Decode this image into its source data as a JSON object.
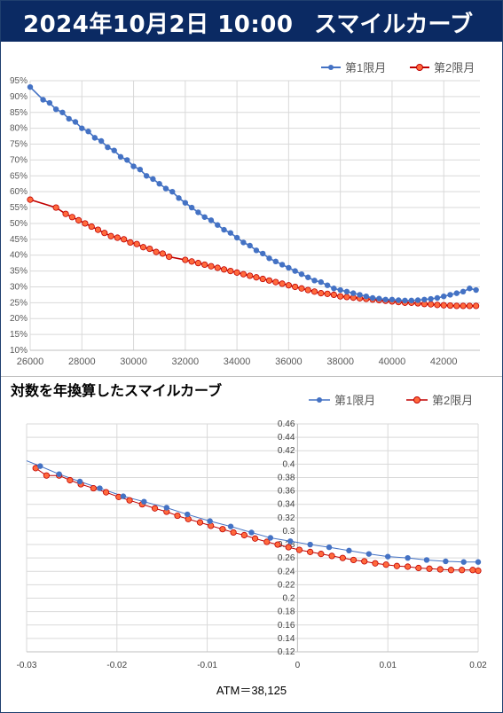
{
  "header": {
    "datetime": "2024年10月2日 10:00",
    "title": "スマイルカーブ"
  },
  "legend": {
    "series1": "第1限月",
    "series2": "第2限月"
  },
  "colors": {
    "series1": "#4472c4",
    "series2": "#ff0000",
    "series2_fill": "#ff6a3d",
    "header_bg": "#0b2a63"
  },
  "chart2_title": "対数を年換算したスマイルカーブ",
  "atm_label": "ATM＝38,125",
  "chart_data": [
    {
      "type": "line",
      "title": "",
      "xlim": [
        26000,
        43400
      ],
      "ylim": [
        10,
        95
      ],
      "x_ticks": [
        26000,
        28000,
        30000,
        32000,
        34000,
        36000,
        38000,
        40000,
        42000
      ],
      "y_ticks": [
        "10%",
        "15%",
        "20%",
        "25%",
        "30%",
        "35%",
        "40%",
        "45%",
        "50%",
        "55%",
        "60%",
        "65%",
        "70%",
        "75%",
        "80%",
        "85%",
        "90%",
        "95%"
      ],
      "grid": true,
      "legend_position": "top-right",
      "series": [
        {
          "name": "第1限月",
          "points": [
            [
              26000,
              93
            ],
            [
              26500,
              89
            ],
            [
              26750,
              88
            ],
            [
              27000,
              86
            ],
            [
              27250,
              85
            ],
            [
              27500,
              83
            ],
            [
              27750,
              82
            ],
            [
              28000,
              80
            ],
            [
              28250,
              79
            ],
            [
              28500,
              77
            ],
            [
              28750,
              76
            ],
            [
              29000,
              74
            ],
            [
              29250,
              73
            ],
            [
              29500,
              71
            ],
            [
              29750,
              70
            ],
            [
              30000,
              68
            ],
            [
              30250,
              67
            ],
            [
              30500,
              65
            ],
            [
              30750,
              64
            ],
            [
              31000,
              62.5
            ],
            [
              31250,
              61
            ],
            [
              31500,
              60
            ],
            [
              31750,
              58
            ],
            [
              32000,
              56.5
            ],
            [
              32250,
              55
            ],
            [
              32500,
              53.5
            ],
            [
              32750,
              52
            ],
            [
              33000,
              51
            ],
            [
              33250,
              49.5
            ],
            [
              33500,
              48
            ],
            [
              33750,
              47
            ],
            [
              34000,
              45.5
            ],
            [
              34250,
              44
            ],
            [
              34500,
              43
            ],
            [
              34750,
              41.5
            ],
            [
              35000,
              40.5
            ],
            [
              35250,
              39
            ],
            [
              35500,
              38
            ],
            [
              35750,
              37
            ],
            [
              36000,
              36
            ],
            [
              36250,
              35
            ],
            [
              36500,
              34
            ],
            [
              36750,
              33
            ],
            [
              37000,
              32
            ],
            [
              37250,
              31.5
            ],
            [
              37500,
              30.5
            ],
            [
              37750,
              29.5
            ],
            [
              38000,
              29
            ],
            [
              38250,
              28.5
            ],
            [
              38500,
              28
            ],
            [
              38750,
              27.5
            ],
            [
              39000,
              27
            ],
            [
              39250,
              26.5
            ],
            [
              39500,
              26.3
            ],
            [
              39750,
              26
            ],
            [
              40000,
              26
            ],
            [
              40250,
              25.8
            ],
            [
              40500,
              25.7
            ],
            [
              40750,
              25.7
            ],
            [
              41000,
              25.8
            ],
            [
              41250,
              26
            ],
            [
              41500,
              26.2
            ],
            [
              41750,
              26.5
            ],
            [
              42000,
              27
            ],
            [
              42250,
              27.5
            ],
            [
              42500,
              28
            ],
            [
              42750,
              28.5
            ],
            [
              43000,
              29.5
            ],
            [
              43250,
              29
            ]
          ]
        },
        {
          "name": "第2限月",
          "points": [
            [
              26000,
              57.5
            ],
            [
              27000,
              55
            ],
            [
              27375,
              53
            ],
            [
              27625,
              52
            ],
            [
              27875,
              51
            ],
            [
              28125,
              50
            ],
            [
              28375,
              49
            ],
            [
              28625,
              48
            ],
            [
              28875,
              47
            ],
            [
              29125,
              46
            ],
            [
              29375,
              45.5
            ],
            [
              29625,
              45
            ],
            [
              29875,
              44
            ],
            [
              30125,
              43.5
            ],
            [
              30375,
              42.5
            ],
            [
              30625,
              42
            ],
            [
              30875,
              41
            ],
            [
              31125,
              40.5
            ],
            [
              31375,
              39.5
            ],
            [
              32000,
              38.5
            ],
            [
              32250,
              38
            ],
            [
              32500,
              37.5
            ],
            [
              32750,
              37
            ],
            [
              33000,
              36.5
            ],
            [
              33250,
              36
            ],
            [
              33500,
              35.5
            ],
            [
              33750,
              35
            ],
            [
              34000,
              34.5
            ],
            [
              34250,
              34
            ],
            [
              34500,
              33.5
            ],
            [
              34750,
              33
            ],
            [
              35000,
              32.5
            ],
            [
              35250,
              32
            ],
            [
              35500,
              31.5
            ],
            [
              35750,
              31
            ],
            [
              36000,
              30.5
            ],
            [
              36250,
              30
            ],
            [
              36500,
              29.5
            ],
            [
              36750,
              29
            ],
            [
              37000,
              28.5
            ],
            [
              37250,
              28
            ],
            [
              37500,
              27.8
            ],
            [
              37750,
              27.5
            ],
            [
              38000,
              27
            ],
            [
              38250,
              26.8
            ],
            [
              38500,
              26.6
            ],
            [
              38750,
              26.4
            ],
            [
              39000,
              26.2
            ],
            [
              39250,
              26
            ],
            [
              39500,
              25.8
            ],
            [
              39750,
              25.6
            ],
            [
              40000,
              25.4
            ],
            [
              40250,
              25.2
            ],
            [
              40500,
              25
            ],
            [
              40750,
              25
            ],
            [
              41000,
              24.8
            ],
            [
              41250,
              24.6
            ],
            [
              41500,
              24.5
            ],
            [
              41750,
              24.3
            ],
            [
              42000,
              24.2
            ],
            [
              42250,
              24.1
            ],
            [
              42500,
              24
            ],
            [
              42750,
              24
            ],
            [
              43000,
              24
            ],
            [
              43250,
              24
            ]
          ]
        }
      ]
    },
    {
      "type": "scatter",
      "title": "対数を年換算したスマイルカーブ",
      "xlim": [
        -0.03,
        0.02
      ],
      "ylim": [
        0.12,
        0.46
      ],
      "x_ticks": [
        "-0.03",
        "-0.02",
        "-0.01",
        "0",
        "0.01",
        "0.02"
      ],
      "y_ticks": [
        "0.12",
        "0.14",
        "0.16",
        "0.18",
        "0.2",
        "0.22",
        "0.24",
        "0.26",
        "0.28",
        "0.3",
        "0.32",
        "0.34",
        "0.36",
        "0.38",
        "0.4",
        "0.42",
        "0.44",
        "0.46"
      ],
      "grid": true,
      "legend_position": "top-right",
      "series": [
        {
          "name": "第1限月",
          "points": [
            [
              -0.0285,
              0.397
            ],
            [
              -0.0264,
              0.385
            ],
            [
              -0.0241,
              0.374
            ],
            [
              -0.0219,
              0.364
            ],
            [
              -0.0193,
              0.352
            ],
            [
              -0.017,
              0.344
            ],
            [
              -0.0145,
              0.335
            ],
            [
              -0.0122,
              0.325
            ],
            [
              -0.0097,
              0.315
            ],
            [
              -0.0074,
              0.307
            ],
            [
              -0.0051,
              0.298
            ],
            [
              -0.003,
              0.29
            ],
            [
              -0.0008,
              0.285
            ],
            [
              0.0014,
              0.28
            ],
            [
              0.0035,
              0.276
            ],
            [
              0.0057,
              0.271
            ],
            [
              0.0079,
              0.266
            ],
            [
              0.01,
              0.262
            ],
            [
              0.0122,
              0.26
            ],
            [
              0.0143,
              0.257
            ],
            [
              0.0164,
              0.255
            ],
            [
              0.0184,
              0.254
            ],
            [
              0.02,
              0.254
            ]
          ]
        },
        {
          "name": "第2限月",
          "points": [
            [
              -0.029,
              0.394
            ],
            [
              -0.0278,
              0.383
            ],
            [
              -0.0264,
              0.383
            ],
            [
              -0.0252,
              0.376
            ],
            [
              -0.024,
              0.37
            ],
            [
              -0.0226,
              0.364
            ],
            [
              -0.0212,
              0.358
            ],
            [
              -0.0198,
              0.351
            ],
            [
              -0.0186,
              0.346
            ],
            [
              -0.0172,
              0.34
            ],
            [
              -0.0158,
              0.334
            ],
            [
              -0.0145,
              0.329
            ],
            [
              -0.0133,
              0.323
            ],
            [
              -0.0121,
              0.318
            ],
            [
              -0.0108,
              0.313
            ],
            [
              -0.0096,
              0.308
            ],
            [
              -0.0083,
              0.303
            ],
            [
              -0.0071,
              0.298
            ],
            [
              -0.0059,
              0.294
            ],
            [
              -0.0047,
              0.289
            ],
            [
              -0.0034,
              0.284
            ],
            [
              -0.0022,
              0.28
            ],
            [
              -0.001,
              0.276
            ],
            [
              0.0002,
              0.272
            ],
            [
              0.0014,
              0.269
            ],
            [
              0.0026,
              0.266
            ],
            [
              0.0038,
              0.263
            ],
            [
              0.005,
              0.26
            ],
            [
              0.0062,
              0.257
            ],
            [
              0.0074,
              0.255
            ],
            [
              0.0086,
              0.252
            ],
            [
              0.0098,
              0.25
            ],
            [
              0.011,
              0.248
            ],
            [
              0.0122,
              0.247
            ],
            [
              0.0134,
              0.245
            ],
            [
              0.0146,
              0.244
            ],
            [
              0.0158,
              0.243
            ],
            [
              0.017,
              0.242
            ],
            [
              0.0182,
              0.242
            ],
            [
              0.0194,
              0.242
            ],
            [
              0.02,
              0.241
            ]
          ]
        }
      ]
    }
  ]
}
